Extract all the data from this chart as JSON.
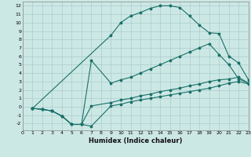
{
  "xlabel": "Humidex (Indice chaleur)",
  "background_color": "#cce8e5",
  "grid_color": "#aacccc",
  "line_color": "#1a7068",
  "xlim": [
    0,
    23
  ],
  "ylim": [
    -2.8,
    12.5
  ],
  "xticks": [
    0,
    1,
    2,
    3,
    4,
    5,
    6,
    7,
    8,
    9,
    10,
    11,
    12,
    13,
    14,
    15,
    16,
    17,
    18,
    19,
    20,
    21,
    22,
    23
  ],
  "yticks": [
    -2,
    -1,
    0,
    1,
    2,
    3,
    4,
    5,
    6,
    7,
    8,
    9,
    10,
    11,
    12
  ],
  "line_top_x": [
    1,
    9,
    10,
    11,
    12,
    13,
    14,
    15,
    16,
    17,
    18,
    19,
    20,
    21,
    22,
    23
  ],
  "line_top_y": [
    -0.2,
    8.5,
    10.0,
    10.8,
    11.2,
    11.7,
    12.0,
    12.0,
    11.8,
    10.8,
    9.7,
    8.8,
    8.7,
    6.0,
    5.2,
    3.2
  ],
  "line_mid_x": [
    1,
    2,
    3,
    4,
    5,
    6,
    7,
    9,
    10,
    11,
    12,
    13,
    14,
    15,
    16,
    17,
    18,
    19,
    20,
    21,
    22,
    23
  ],
  "line_mid_y": [
    -0.2,
    -0.3,
    -0.5,
    -1.1,
    -2.1,
    -2.1,
    5.5,
    2.8,
    3.2,
    3.5,
    4.0,
    4.5,
    5.0,
    5.5,
    6.0,
    6.5,
    7.0,
    7.5,
    6.2,
    5.0,
    3.3,
    2.8
  ],
  "line_bot1_x": [
    1,
    2,
    3,
    4,
    5,
    6,
    7,
    9,
    10,
    11,
    12,
    13,
    14,
    15,
    16,
    17,
    18,
    19,
    20,
    21,
    22,
    23
  ],
  "line_bot1_y": [
    -0.2,
    -0.3,
    -0.5,
    -1.1,
    -2.1,
    -2.1,
    0.1,
    0.5,
    0.8,
    1.0,
    1.3,
    1.5,
    1.8,
    2.0,
    2.2,
    2.5,
    2.7,
    3.0,
    3.2,
    3.3,
    3.5,
    2.8
  ],
  "line_bot2_x": [
    1,
    2,
    3,
    4,
    5,
    6,
    7,
    9,
    10,
    11,
    12,
    13,
    14,
    15,
    16,
    17,
    18,
    19,
    20,
    21,
    22,
    23
  ],
  "line_bot2_y": [
    -0.2,
    -0.3,
    -0.5,
    -1.1,
    -2.1,
    -2.1,
    -2.3,
    0.1,
    0.3,
    0.6,
    0.8,
    1.0,
    1.2,
    1.4,
    1.6,
    1.8,
    2.0,
    2.2,
    2.5,
    2.8,
    3.0,
    2.7
  ]
}
